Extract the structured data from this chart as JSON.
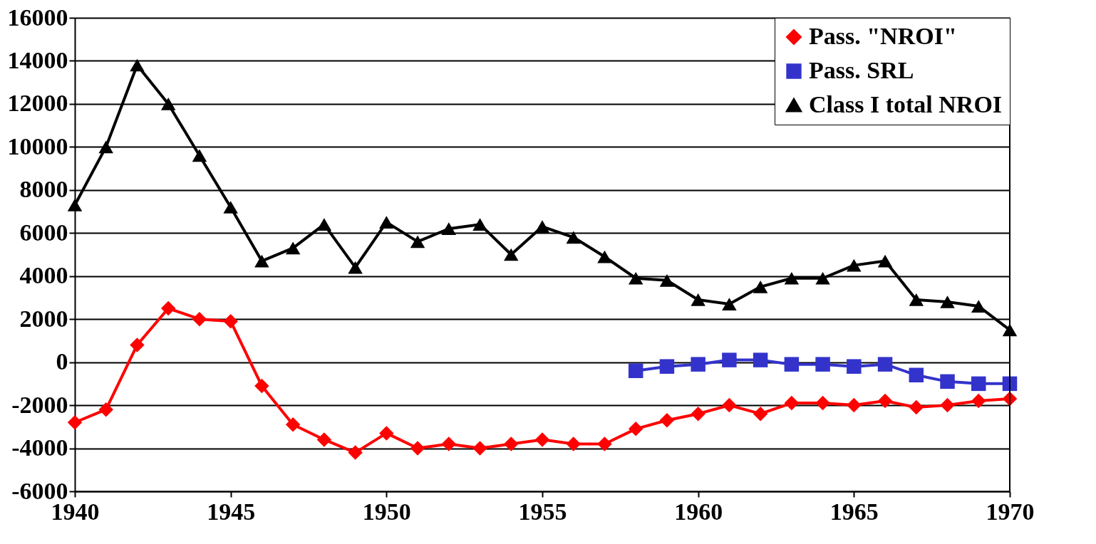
{
  "chart_data": {
    "type": "line",
    "x": [
      1940,
      1941,
      1942,
      1943,
      1944,
      1945,
      1946,
      1947,
      1948,
      1949,
      1950,
      1951,
      1952,
      1953,
      1954,
      1955,
      1956,
      1957,
      1958,
      1959,
      1960,
      1961,
      1962,
      1963,
      1964,
      1965,
      1966,
      1967,
      1968,
      1969,
      1970
    ],
    "series": [
      {
        "name": "Pass. \"NROI\"",
        "color": "#ff0000",
        "marker": "diamond",
        "values": [
          -2800,
          -2200,
          800,
          2500,
          2000,
          1900,
          -1100,
          -2900,
          -3600,
          -4200,
          -3300,
          -4000,
          -3800,
          -4000,
          -3800,
          -3600,
          -3800,
          -3800,
          -3100,
          -2700,
          -2400,
          -2000,
          -2400,
          -1900,
          -1900,
          -2000,
          -1800,
          -2100,
          -2000,
          -1800,
          -1700
        ]
      },
      {
        "name": "Pass. SRL",
        "color": "#3333cc",
        "marker": "square",
        "values": [
          null,
          null,
          null,
          null,
          null,
          null,
          null,
          null,
          null,
          null,
          null,
          null,
          null,
          null,
          null,
          null,
          null,
          null,
          -400,
          -200,
          -100,
          100,
          100,
          -100,
          -100,
          -200,
          -100,
          -600,
          -900,
          -1000,
          -1000
        ]
      },
      {
        "name": "Class I total NROI",
        "color": "#000000",
        "marker": "triangle",
        "values": [
          7300,
          10000,
          13800,
          12000,
          9600,
          7200,
          4700,
          5300,
          6400,
          4400,
          6500,
          5600,
          6200,
          6400,
          5000,
          6300,
          5800,
          4900,
          3900,
          3800,
          2900,
          2700,
          3500,
          3900,
          3900,
          4500,
          4700,
          2900,
          2800,
          2600,
          1500
        ]
      }
    ],
    "xlim": [
      1940,
      1970
    ],
    "xticks": [
      1940,
      1945,
      1950,
      1955,
      1960,
      1965,
      1970
    ],
    "ylim": [
      -6000,
      16000
    ],
    "yticks": [
      -6000,
      -4000,
      -2000,
      0,
      2000,
      4000,
      6000,
      8000,
      10000,
      12000,
      14000,
      16000
    ],
    "grid": "y",
    "legend": "top right",
    "line_style": "solid"
  }
}
